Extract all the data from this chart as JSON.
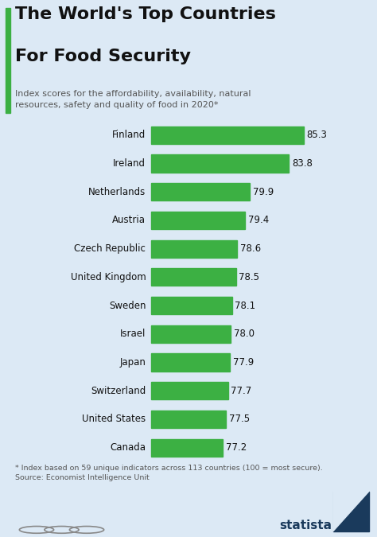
{
  "title_line1": "The World's Top Countries",
  "title_line2": "For Food Security",
  "subtitle": "Index scores for the affordability, availability, natural\nresources, safety and quality of food in 2020*",
  "footnote": "* Index based on 59 unique indicators across 113 countries (100 = most secure).\nSource: Economist Intelligence Unit",
  "countries": [
    "Finland",
    "Ireland",
    "Netherlands",
    "Austria",
    "Czech Republic",
    "United Kingdom",
    "Sweden",
    "Israel",
    "Japan",
    "Switzerland",
    "United States",
    "Canada"
  ],
  "values": [
    85.3,
    83.8,
    79.9,
    79.4,
    78.6,
    78.5,
    78.1,
    78.0,
    77.9,
    77.7,
    77.5,
    77.2
  ],
  "bar_color": "#3cb043",
  "bg_color": "#dce9f5",
  "title_color": "#111111",
  "subtitle_color": "#555555",
  "footnote_color": "#555555",
  "accent_color": "#3cb043",
  "value_color": "#111111",
  "statista_color": "#1a3a5c",
  "bar_xlim_min": 70,
  "bar_xlim_max": 91,
  "title_fontsize": 16,
  "subtitle_fontsize": 8,
  "label_fontsize": 8.5,
  "value_fontsize": 8.5,
  "footnote_fontsize": 6.8
}
